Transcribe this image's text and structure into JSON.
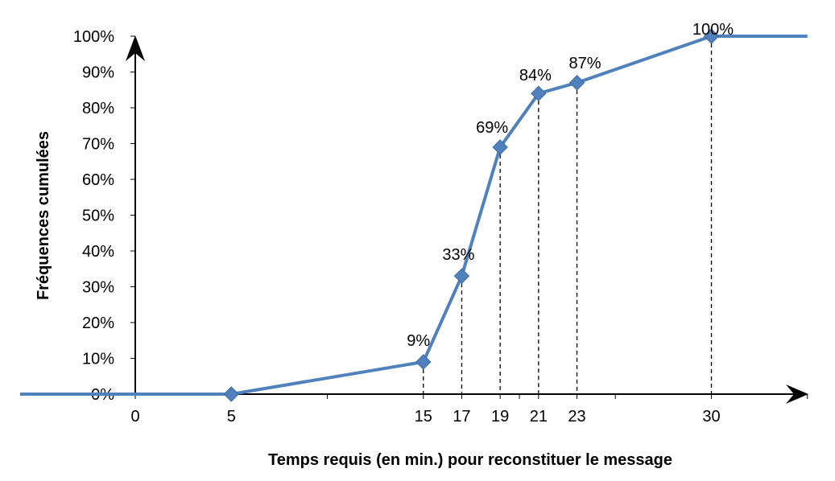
{
  "chart_data": {
    "type": "line",
    "title": "",
    "xlabel": "Temps requis (en min.) pour reconstituer le message",
    "ylabel": "Fréquences cumulées",
    "xlim": [
      -6,
      35
    ],
    "ylim": [
      0,
      1
    ],
    "x_ticks": [
      0,
      5,
      15,
      17,
      19,
      21,
      23,
      30
    ],
    "y_ticks": [
      {
        "value": 0,
        "label": "0%"
      },
      {
        "value": 0.1,
        "label": "10%"
      },
      {
        "value": 0.2,
        "label": "20%"
      },
      {
        "value": 0.3,
        "label": "30%"
      },
      {
        "value": 0.4,
        "label": "40%"
      },
      {
        "value": 0.5,
        "label": "50%"
      },
      {
        "value": 0.6,
        "label": "60%"
      },
      {
        "value": 0.7,
        "label": "70%"
      },
      {
        "value": 0.8,
        "label": "80%"
      },
      {
        "value": 0.9,
        "label": "90%"
      },
      {
        "value": 1.0,
        "label": "100%"
      }
    ],
    "series": [
      {
        "color": "#4f81bd",
        "points": [
          {
            "x": 5,
            "y": 0,
            "label": ""
          },
          {
            "x": 15,
            "y": 0.09,
            "label": "9%"
          },
          {
            "x": 17,
            "y": 0.33,
            "label": "33%"
          },
          {
            "x": 19,
            "y": 0.69,
            "label": "69%"
          },
          {
            "x": 21,
            "y": 0.84,
            "label": "84%"
          },
          {
            "x": 23,
            "y": 0.87,
            "label": "87%"
          },
          {
            "x": 30,
            "y": 1.0,
            "label": "100%"
          }
        ],
        "extend_left_to": -6,
        "extend_right_to": 35
      }
    ],
    "dashed_droplines": true,
    "grid": false,
    "legend": "none"
  }
}
